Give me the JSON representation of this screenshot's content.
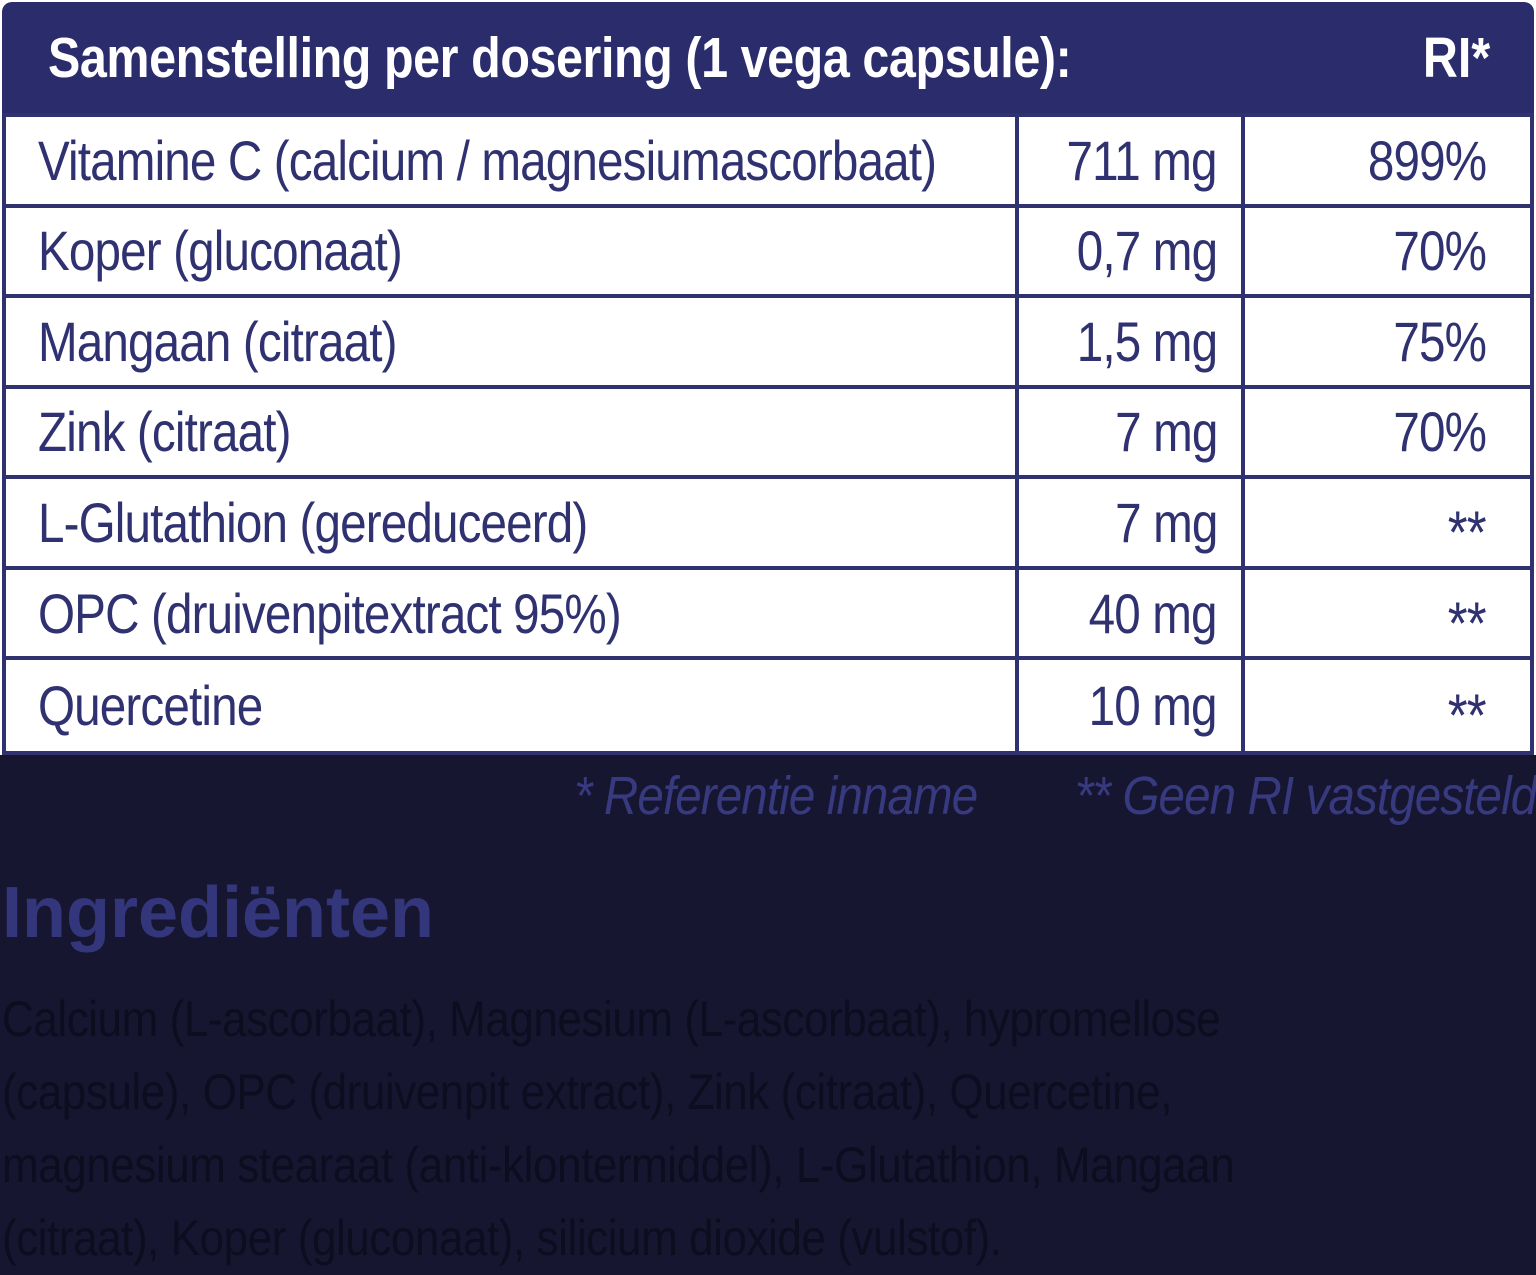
{
  "table": {
    "header": {
      "title": "Samenstelling per dosering (1 vega capsule):",
      "ri_label": "RI*"
    },
    "columns": [
      "name",
      "amount",
      "ri"
    ],
    "rows": [
      {
        "name": "Vitamine C (calcium / magnesiumascorbaat)",
        "amount": "711 mg",
        "ri": "899%"
      },
      {
        "name": "Koper (gluconaat)",
        "amount": "0,7 mg",
        "ri": "70%"
      },
      {
        "name": "Mangaan (citraat)",
        "amount": "1,5 mg",
        "ri": "75%"
      },
      {
        "name": "Zink (citraat)",
        "amount": "7 mg",
        "ri": "70%"
      },
      {
        "name": "L-Glutathion (gereduceerd)",
        "amount": "7 mg",
        "ri": "**"
      },
      {
        "name": "OPC (druivenpitextract 95%)",
        "amount": "40 mg",
        "ri": "**"
      },
      {
        "name": "Quercetine",
        "amount": "10 mg",
        "ri": "**"
      }
    ]
  },
  "footnotes": {
    "reference_intake": "* Referentie inname",
    "no_ri_set": "** Geen RI vastgesteld"
  },
  "ingredients": {
    "heading": "Ingrediënten",
    "lines": [
      "Calcium (L-ascorbaat), Magnesium (L-ascorbaat), hypromellose",
      "(capsule), OPC (druivenpit extract), Zink (citraat), Quercetine,",
      "magnesium stearaat (anti-klontermiddel), L-Glutathion, Mangaan",
      "(citraat), Koper (gluconaat), silicium dioxide (vulstof)."
    ]
  },
  "colors": {
    "header_bg": "#2b2c6c",
    "table_border": "#303270",
    "table_text": "#2f3170",
    "dark_section_bg": "#161631",
    "footnote_text": "#383a80",
    "heading_text": "#34367c",
    "body_text": "#0c0d1e",
    "header_text": "#ffffff"
  }
}
